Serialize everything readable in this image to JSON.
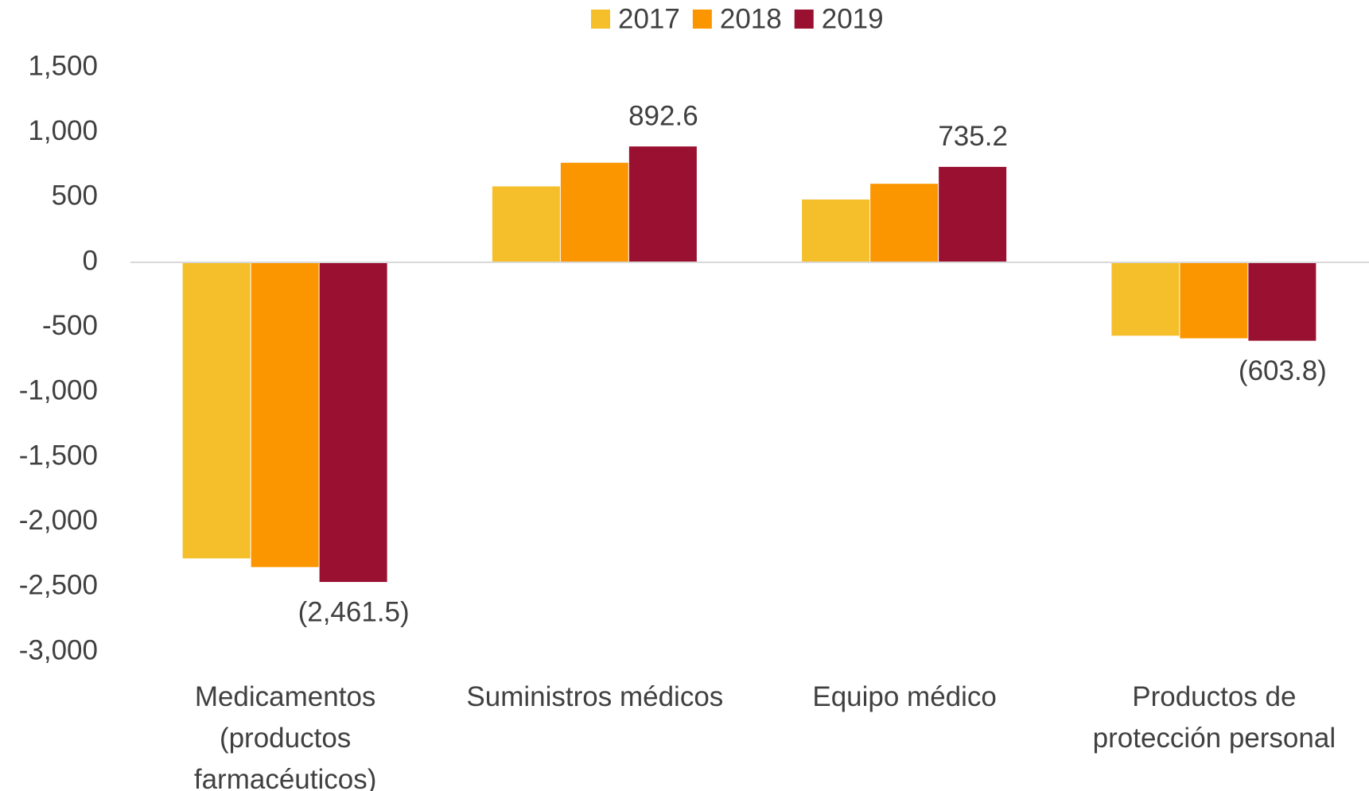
{
  "chart_data": {
    "type": "bar",
    "categories": [
      "Medicamentos (productos farmacéuticos)",
      "Suministros médicos",
      "Equipo médico",
      "Productos de protección personal"
    ],
    "series": [
      {
        "name": "2017",
        "color": "#f4bf2a",
        "values": [
          -2280,
          585,
          484,
          -565
        ]
      },
      {
        "name": "2018",
        "color": "#fb9600",
        "values": [
          -2347,
          767,
          605,
          -585
        ]
      },
      {
        "name": "2019",
        "color": "#9a1030",
        "values": [
          -2461.5,
          892.6,
          735.2,
          -603.8
        ],
        "value_labels": [
          "(2,461.5)",
          "892.6",
          "735.2",
          "(603.8)"
        ]
      }
    ],
    "ylim": [
      -3000,
      1500
    ],
    "yticks": [
      {
        "value": 1500,
        "label": "1,500"
      },
      {
        "value": 1000,
        "label": "1,000"
      },
      500,
      0,
      -500,
      {
        "value": -1000,
        "label": "-1,000"
      },
      {
        "value": -1500,
        "label": "-1,500"
      },
      {
        "value": -2000,
        "label": "-2,000"
      },
      {
        "value": -2500,
        "label": "-2,500"
      },
      {
        "value": -3000,
        "label": "-3,000"
      }
    ],
    "legend": "top",
    "grid": false
  }
}
